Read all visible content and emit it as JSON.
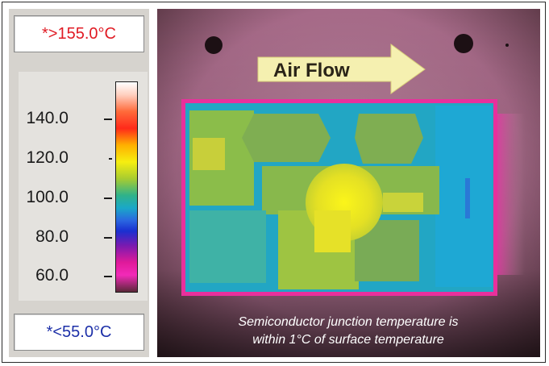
{
  "legend": {
    "max_readout": "*>155.0°C",
    "min_readout": "*<55.0°C",
    "max_color": "#e01b24",
    "min_color": "#1c2fa8",
    "ticks": [
      "140.0",
      "120.0",
      "100.0",
      "80.0",
      "60.0"
    ],
    "colormap": "iron-rainbow"
  },
  "image": {
    "arrow_label": "Air Flow",
    "caption_line1": "Semiconductor junction temperature is",
    "caption_line2": "within 1°C of surface temperature"
  }
}
